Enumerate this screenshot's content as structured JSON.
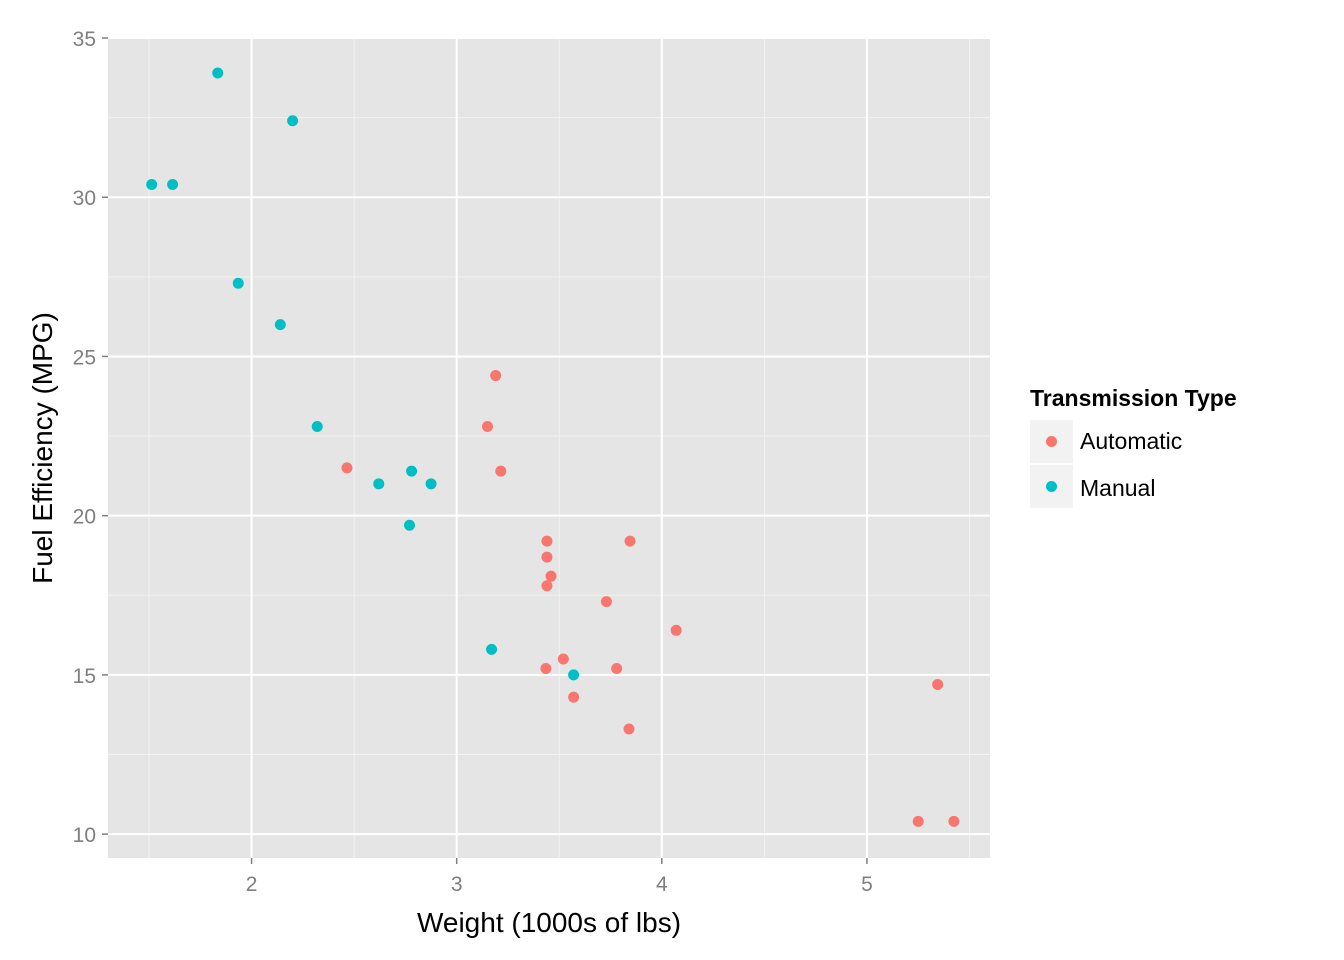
{
  "chart_data": {
    "type": "scatter",
    "xlabel": "Weight (1000s of lbs)",
    "ylabel": "Fuel Efficiency (MPG)",
    "xlim": [
      1.3,
      5.6
    ],
    "ylim": [
      9.25,
      35.0
    ],
    "x_ticks": [
      2,
      3,
      4,
      5
    ],
    "y_ticks": [
      10,
      15,
      20,
      25,
      30,
      35
    ],
    "x_tick_labels": [
      "2",
      "3",
      "4",
      "5"
    ],
    "y_tick_labels": [
      "10",
      "15",
      "20",
      "25",
      "30",
      "35"
    ],
    "grid": true,
    "legend": {
      "title": "Transmission Type",
      "placement": "right"
    },
    "series": [
      {
        "name": "Automatic",
        "color": "#F8766D",
        "points": [
          {
            "x": 3.215,
            "y": 21.4
          },
          {
            "x": 3.44,
            "y": 18.7
          },
          {
            "x": 3.46,
            "y": 18.1
          },
          {
            "x": 3.57,
            "y": 14.3
          },
          {
            "x": 3.19,
            "y": 24.4
          },
          {
            "x": 3.15,
            "y": 22.8
          },
          {
            "x": 3.44,
            "y": 19.2
          },
          {
            "x": 3.44,
            "y": 17.8
          },
          {
            "x": 4.07,
            "y": 16.4
          },
          {
            "x": 3.73,
            "y": 17.3
          },
          {
            "x": 3.78,
            "y": 15.2
          },
          {
            "x": 5.25,
            "y": 10.4
          },
          {
            "x": 5.424,
            "y": 10.4
          },
          {
            "x": 5.345,
            "y": 14.7
          },
          {
            "x": 2.465,
            "y": 21.5
          },
          {
            "x": 3.52,
            "y": 15.5
          },
          {
            "x": 3.435,
            "y": 15.2
          },
          {
            "x": 3.84,
            "y": 13.3
          },
          {
            "x": 3.845,
            "y": 19.2
          }
        ]
      },
      {
        "name": "Manual",
        "color": "#00BFC4",
        "points": [
          {
            "x": 2.62,
            "y": 21.0
          },
          {
            "x": 2.875,
            "y": 21.0
          },
          {
            "x": 2.32,
            "y": 22.8
          },
          {
            "x": 2.2,
            "y": 32.4
          },
          {
            "x": 1.615,
            "y": 30.4
          },
          {
            "x": 1.835,
            "y": 33.9
          },
          {
            "x": 1.935,
            "y": 27.3
          },
          {
            "x": 2.14,
            "y": 26.0
          },
          {
            "x": 1.513,
            "y": 30.4
          },
          {
            "x": 3.17,
            "y": 15.8
          },
          {
            "x": 2.77,
            "y": 19.7
          },
          {
            "x": 2.78,
            "y": 21.4
          },
          {
            "x": 3.57,
            "y": 15.0
          }
        ]
      }
    ]
  }
}
